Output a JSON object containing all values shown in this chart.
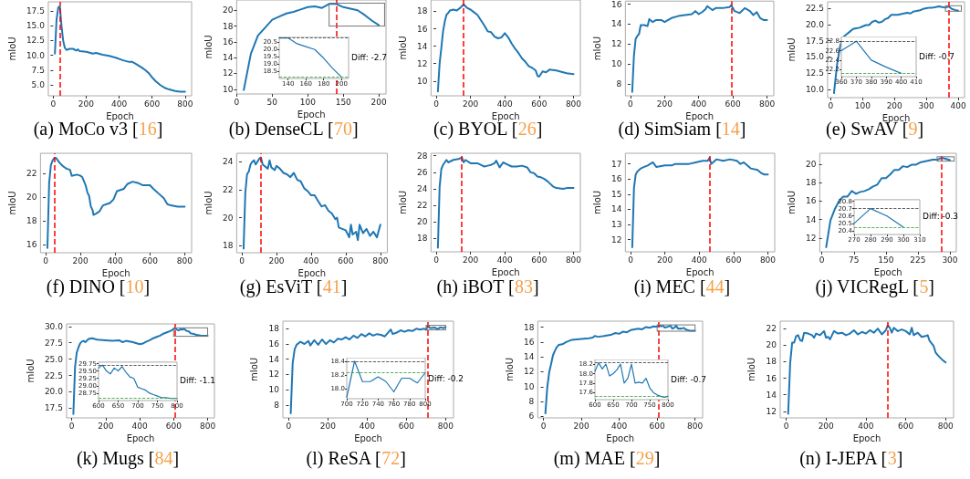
{
  "chart_data": [
    {
      "type": "line",
      "title": "(a) MoCo v3 [16]",
      "xlabel": "Epoch",
      "ylabel": "mIoU",
      "color": "#1f77b4",
      "x": [
        10,
        20,
        30,
        40,
        50,
        60,
        70,
        80,
        100,
        120,
        140,
        150,
        160,
        200,
        240,
        260,
        300,
        340,
        380,
        420,
        460,
        480,
        500,
        540,
        560,
        580,
        600,
        620,
        650,
        680,
        700,
        740,
        770,
        800
      ],
      "values": [
        10.3,
        16,
        18,
        18.3,
        15,
        12.5,
        11.3,
        10.9,
        11.1,
        11.1,
        10.8,
        11,
        10.7,
        10.6,
        10.3,
        10.4,
        10.1,
        9.9,
        9.6,
        9.2,
        8.9,
        8.9,
        8.6,
        7.9,
        7.5,
        7,
        6.3,
        5.7,
        5,
        4.5,
        4.3,
        4,
        3.9,
        3.9
      ],
      "xlim": [
        -30,
        840
      ],
      "ylim": [
        3.2,
        19
      ],
      "xticks": [
        0,
        200,
        400,
        600,
        800
      ],
      "yticks": [
        {
          "value": 5,
          "label": "5.0"
        },
        7.5,
        {
          "value": 10,
          "label": "10.0"
        },
        12.5,
        {
          "value": 15,
          "label": "15.0"
        },
        17.5
      ],
      "ref_lines": [
        {
          "axis": "x",
          "value": 40,
          "color": "#ff0000",
          "line_style": "dashed"
        }
      ]
    },
    {
      "type": "line",
      "title": "(b) DenseCL [70]",
      "xlabel": "Epoch",
      "ylabel": "mIoU",
      "color": "#1f77b4",
      "x": [
        10,
        20,
        30,
        40,
        50,
        60,
        70,
        80,
        90,
        100,
        110,
        120,
        130,
        140,
        150,
        160,
        170,
        180,
        190,
        200
      ],
      "values": [
        9.9,
        14.5,
        16.8,
        17.8,
        18.8,
        19.2,
        19.6,
        19.8,
        20.1,
        20.4,
        20.5,
        20.3,
        20.8,
        20.8,
        20.4,
        20.2,
        20,
        19.4,
        18.7,
        18.1
      ],
      "xlim": [
        0,
        210
      ],
      "ylim": [
        9.4,
        21.3
      ],
      "xticks": [
        0,
        50,
        100,
        150,
        200
      ],
      "yticks": [
        10,
        12,
        14,
        16,
        18,
        20
      ],
      "ref_lines": [
        {
          "axis": "x",
          "value": 140,
          "color": "#ff0000",
          "line_style": "dashed"
        }
      ]
    },
    {
      "type": "line",
      "title": "(c) BYOL [26]",
      "xlabel": "Epoch",
      "ylabel": "mIoU",
      "color": "#1f77b4",
      "x": [
        10,
        20,
        30,
        40,
        50,
        60,
        70,
        80,
        100,
        120,
        140,
        160,
        170,
        180,
        200,
        220,
        240,
        260,
        280,
        300,
        320,
        340,
        360,
        380,
        400,
        420,
        440,
        460,
        480,
        500,
        520,
        540,
        560,
        580,
        590,
        600,
        620,
        640,
        660,
        700,
        740,
        760,
        800
      ],
      "values": [
        8.8,
        12,
        13.8,
        15.7,
        16.8,
        17.6,
        17.8,
        18.1,
        18.2,
        18.1,
        18.4,
        18.8,
        18.6,
        18.4,
        18.2,
        17.9,
        17.6,
        17,
        16.4,
        15.7,
        15.6,
        15.1,
        14.9,
        15,
        15.5,
        15,
        14.3,
        13.7,
        13.2,
        12.6,
        12.2,
        11.7,
        11.5,
        11.2,
        10.6,
        10.5,
        11.1,
        11,
        11.3,
        11.2,
        11,
        10.9,
        10.8
      ],
      "xlim": [
        -30,
        840
      ],
      "ylim": [
        8.3,
        19.3
      ],
      "xticks": [
        0,
        200,
        400,
        600,
        800
      ],
      "yticks": [
        10,
        12,
        14,
        16,
        18
      ],
      "ref_lines": [
        {
          "axis": "x",
          "value": 160,
          "color": "#ff0000",
          "line_style": "dashed"
        }
      ]
    },
    {
      "type": "line",
      "title": "(d) SimSiam [14]",
      "xlabel": "Epoch",
      "ylabel": "mIoU",
      "color": "#1f77b4",
      "x": [
        10,
        20,
        30,
        40,
        50,
        60,
        80,
        100,
        110,
        130,
        150,
        180,
        200,
        240,
        280,
        320,
        360,
        380,
        400,
        420,
        440,
        450,
        480,
        500,
        540,
        580,
        590,
        610,
        640,
        670,
        700,
        720,
        740,
        760,
        780,
        800
      ],
      "values": [
        7.2,
        10.8,
        12.5,
        12.8,
        13,
        13.9,
        13.9,
        13.8,
        14.5,
        14.2,
        14.4,
        14.4,
        14.2,
        14.6,
        14.8,
        14.9,
        15,
        15.3,
        15,
        15.2,
        15.5,
        15.8,
        15.4,
        15.6,
        15.6,
        15.7,
        15.9,
        15.3,
        15.1,
        15.6,
        15.3,
        14.9,
        15.2,
        14.6,
        14.4,
        14.4
      ],
      "xlim": [
        -30,
        840
      ],
      "ylim": [
        6.8,
        16.3
      ],
      "xticks": [
        0,
        200,
        400,
        600,
        800
      ],
      "yticks": [
        8,
        10,
        12,
        14,
        16
      ],
      "ref_lines": [
        {
          "axis": "x",
          "value": 590,
          "color": "#ff0000",
          "line_style": "dashed"
        }
      ]
    },
    {
      "type": "line",
      "title": "(e) SwAV [9]",
      "xlabel": "Epoch",
      "ylabel": "mIoU",
      "color": "#1f77b4",
      "x": [
        10,
        20,
        30,
        40,
        50,
        60,
        70,
        80,
        90,
        100,
        110,
        120,
        130,
        140,
        150,
        160,
        170,
        180,
        190,
        200,
        210,
        220,
        230,
        240,
        250,
        260,
        270,
        280,
        290,
        300,
        310,
        320,
        330,
        340,
        350,
        360,
        370,
        380,
        390,
        400
      ],
      "values": [
        9.4,
        13.9,
        16.8,
        18.1,
        18.5,
        18.9,
        19.3,
        19.4,
        19.5,
        19.7,
        19.9,
        19.9,
        20.4,
        20.6,
        20.3,
        20.4,
        20.8,
        21,
        21.5,
        21.5,
        21.5,
        21.6,
        21.7,
        21.8,
        21.7,
        22,
        22.1,
        22.2,
        22.4,
        22.5,
        22.6,
        22.6,
        22.7,
        22.8,
        22.7,
        22.6,
        22.8,
        22.4,
        22.25,
        22.12
      ],
      "xlim": [
        -10,
        420
      ],
      "ylim": [
        8.7,
        23.5
      ],
      "xticks": [
        0,
        100,
        200,
        300,
        400
      ],
      "yticks": [
        {
          "value": 10,
          "label": "10.0"
        },
        12.5,
        {
          "value": 15,
          "label": "15.0"
        },
        17.5,
        {
          "value": 20,
          "label": "20.0"
        },
        22.5
      ],
      "ref_lines": [
        {
          "axis": "x",
          "value": 370,
          "color": "#ff0000",
          "line_style": "dashed"
        }
      ]
    },
    {
      "type": "line",
      "title": "(f) DINO [10]",
      "xlabel": "Epoch",
      "ylabel": "mIoU",
      "color": "#1f77b4",
      "x": [
        10,
        20,
        30,
        40,
        50,
        60,
        70,
        80,
        100,
        120,
        140,
        150,
        180,
        200,
        210,
        230,
        240,
        250,
        260,
        270,
        275,
        290,
        310,
        330,
        350,
        370,
        390,
        410,
        430,
        450,
        470,
        500,
        530,
        560,
        600,
        620,
        650,
        680,
        700,
        720,
        760,
        800
      ],
      "values": [
        15.7,
        21.2,
        22.7,
        23.1,
        23.3,
        23.3,
        23.1,
        22.9,
        22.6,
        22.4,
        22.3,
        21.8,
        21.9,
        21.8,
        21.7,
        21,
        20.4,
        20.1,
        19.2,
        18.9,
        18.5,
        18.6,
        18.8,
        19.3,
        19.4,
        19.5,
        19.8,
        20.5,
        20.6,
        20.7,
        21.1,
        21.3,
        21.2,
        21,
        21,
        20.7,
        20.3,
        19.9,
        19.4,
        19.3,
        19.2,
        19.2
      ],
      "xlim": [
        -30,
        840
      ],
      "ylim": [
        15.3,
        23.7
      ],
      "xticks": [
        0,
        200,
        400,
        600,
        800
      ],
      "yticks": [
        16,
        18,
        20,
        22
      ],
      "ref_lines": [
        {
          "axis": "x",
          "value": 50,
          "color": "#ff0000",
          "line_style": "dashed"
        }
      ]
    },
    {
      "type": "line",
      "title": "(g) EsViT [41]",
      "xlabel": "Epoch",
      "ylabel": "mIoU",
      "color": "#1f77b4",
      "x": [
        10,
        20,
        30,
        40,
        50,
        60,
        70,
        80,
        90,
        100,
        110,
        120,
        140,
        150,
        160,
        170,
        190,
        200,
        220,
        240,
        260,
        280,
        300,
        320,
        340,
        360,
        380,
        400,
        420,
        440,
        460,
        480,
        500,
        520,
        540,
        550,
        560,
        580,
        600,
        620,
        630,
        640,
        660,
        670,
        680,
        700,
        720,
        740,
        760,
        780,
        800
      ],
      "values": [
        17.8,
        21.8,
        23.1,
        23.3,
        23.8,
        24,
        24.1,
        23.8,
        24,
        24.2,
        24.3,
        23.8,
        23.6,
        23.5,
        24.1,
        23.6,
        23.4,
        23.7,
        23.5,
        23.2,
        23.1,
        22.9,
        23.2,
        22.7,
        22.6,
        22.1,
        21.9,
        21.6,
        21.6,
        21.2,
        20.8,
        20.9,
        20.5,
        20.3,
        19.9,
        20,
        19.3,
        19.2,
        19.1,
        18.6,
        19.5,
        18.8,
        19,
        18.4,
        19.5,
        18.9,
        19.2,
        18.7,
        19,
        18.6,
        19.5
      ],
      "xlim": [
        -30,
        840
      ],
      "ylim": [
        17.5,
        24.6
      ],
      "xticks": [
        0,
        200,
        400,
        600,
        800
      ],
      "yticks": [
        18,
        20,
        22,
        24
      ],
      "ref_lines": [
        {
          "axis": "x",
          "value": 110,
          "color": "#ff0000",
          "line_style": "dashed"
        }
      ]
    },
    {
      "type": "line",
      "title": "(h) iBOT [83]",
      "xlabel": "Epoch",
      "ylabel": "mIoU",
      "color": "#1f77b4",
      "x": [
        10,
        20,
        30,
        40,
        50,
        60,
        70,
        100,
        130,
        150,
        160,
        170,
        200,
        240,
        260,
        280,
        300,
        320,
        340,
        350,
        370,
        390,
        410,
        440,
        470,
        500,
        530,
        550,
        570,
        590,
        610,
        630,
        650,
        680,
        700,
        740,
        760,
        800
      ],
      "values": [
        16.9,
        24.2,
        26.4,
        26.9,
        27.2,
        27.5,
        27.2,
        27.5,
        27.6,
        27.8,
        27.2,
        27.5,
        27.1,
        27.1,
        26.9,
        26.7,
        26.8,
        26.9,
        27.1,
        27.4,
        26.6,
        27.2,
        27,
        26.7,
        26.7,
        26.8,
        26.6,
        26,
        25.9,
        25.5,
        25.4,
        25.2,
        24.9,
        24.3,
        24.1,
        24,
        24.1,
        24.1
      ],
      "xlim": [
        -30,
        840
      ],
      "ylim": [
        16.4,
        28.3
      ],
      "xticks": [
        0,
        200,
        400,
        600,
        800
      ],
      "yticks": [
        18,
        20,
        22,
        24,
        26,
        28
      ],
      "ref_lines": [
        {
          "axis": "x",
          "value": 150,
          "color": "#ff0000",
          "line_style": "dashed"
        }
      ]
    },
    {
      "type": "line",
      "title": "(i) MEC [44]",
      "xlabel": "Epoch",
      "ylabel": "mIoU",
      "color": "#1f77b4",
      "x": [
        10,
        20,
        30,
        40,
        60,
        80,
        100,
        130,
        150,
        200,
        240,
        260,
        300,
        340,
        380,
        420,
        450,
        460,
        470,
        500,
        540,
        580,
        620,
        640,
        660,
        700,
        740,
        760,
        780,
        800
      ],
      "values": [
        11.5,
        15.4,
        16.3,
        16.5,
        16.7,
        16.8,
        16.9,
        17.1,
        16.8,
        16.9,
        16.9,
        17,
        17,
        17,
        17.1,
        17.2,
        17.2,
        17.4,
        17,
        17.3,
        17.2,
        17.3,
        17.2,
        17,
        17.1,
        16.7,
        16.6,
        16.4,
        16.3,
        16.3
      ],
      "xlim": [
        -30,
        840
      ],
      "ylim": [
        11.2,
        17.7
      ],
      "xticks": [
        0,
        200,
        400,
        600,
        800
      ],
      "yticks": [
        12,
        13,
        14,
        15,
        16,
        17
      ],
      "ref_lines": [
        {
          "axis": "x",
          "value": 460,
          "color": "#ff0000",
          "line_style": "dashed"
        }
      ]
    },
    {
      "type": "line",
      "title": "(j) VICRegL [5]",
      "xlabel": "Epoch",
      "ylabel": "mIoU",
      "color": "#1f77b4",
      "x": [
        10,
        20,
        30,
        40,
        50,
        60,
        70,
        80,
        90,
        100,
        110,
        120,
        130,
        140,
        150,
        160,
        170,
        180,
        190,
        200,
        210,
        220,
        230,
        240,
        250,
        260,
        270,
        280,
        290,
        300
      ],
      "values": [
        11,
        13.9,
        15.1,
        16,
        16.5,
        16.5,
        17.1,
        16.8,
        17,
        17.1,
        17.3,
        17.6,
        17.8,
        18.5,
        18.5,
        18.9,
        19.4,
        19.4,
        19.8,
        19.7,
        19.95,
        19.95,
        20.2,
        20.3,
        20.4,
        20.5,
        20.5,
        20.7,
        20.6,
        20.45
      ],
      "xlim": [
        -5,
        315
      ],
      "ylim": [
        10.5,
        21.2
      ],
      "xticks": [
        0,
        75,
        150,
        225,
        300
      ],
      "yticks": [
        12,
        14,
        16,
        18,
        20
      ],
      "ref_lines": [
        {
          "axis": "x",
          "value": 280,
          "color": "#ff0000",
          "line_style": "dashed"
        }
      ]
    },
    {
      "type": "line",
      "title": "(k) Mugs [84]",
      "xlabel": "Epoch",
      "ylabel": "mIoU",
      "color": "#1f77b4",
      "x": [
        10,
        20,
        30,
        40,
        50,
        60,
        70,
        80,
        100,
        120,
        150,
        200,
        240,
        280,
        300,
        320,
        360,
        400,
        420,
        440,
        460,
        480,
        500,
        520,
        540,
        560,
        580,
        600,
        610,
        620,
        630,
        640,
        650,
        660,
        670,
        680,
        690,
        700,
        710,
        720,
        730,
        740,
        750,
        760,
        770,
        780,
        790,
        800
      ],
      "values": [
        16.6,
        23.8,
        26,
        26.8,
        27.4,
        27.7,
        27.8,
        27.6,
        28.1,
        28.2,
        28,
        27.9,
        27.8,
        27.9,
        27.6,
        27.8,
        27.6,
        27.3,
        27.4,
        27.7,
        27.9,
        28.2,
        28.4,
        28.6,
        28.9,
        29.1,
        29.3,
        29.6,
        29.7,
        29.5,
        29.4,
        29.6,
        29.5,
        29.65,
        29.45,
        29.3,
        29.25,
        28.95,
        28.9,
        28.85,
        28.75,
        28.7,
        28.65,
        28.6,
        28.6,
        28.58,
        28.57,
        28.57
      ],
      "xlim": [
        -30,
        840
      ],
      "ylim": [
        16,
        30.4
      ],
      "xticks": [
        0,
        200,
        400,
        600,
        800
      ],
      "yticks": [
        17.5,
        {
          "value": 20,
          "label": "20.0"
        },
        22.5,
        {
          "value": 25,
          "label": "25.0"
        },
        27.5,
        {
          "value": 30,
          "label": "30.0"
        }
      ],
      "ref_lines": [
        {
          "axis": "x",
          "value": 610,
          "color": "#ff0000",
          "line_style": "dashed"
        }
      ]
    },
    {
      "type": "line",
      "title": "(l) ReSA [72]",
      "xlabel": "Epoch",
      "ylabel": "mIoU",
      "color": "#1f77b4",
      "x": [
        10,
        20,
        30,
        40,
        60,
        80,
        100,
        110,
        130,
        150,
        170,
        190,
        210,
        230,
        250,
        270,
        290,
        310,
        330,
        350,
        370,
        390,
        410,
        430,
        450,
        470,
        490,
        510,
        520,
        530,
        550,
        570,
        590,
        610,
        630,
        650,
        670,
        690,
        700,
        710,
        720,
        730,
        740,
        750,
        760,
        770,
        780,
        790,
        800
      ],
      "values": [
        6.9,
        13.5,
        15.3,
        15.9,
        16.3,
        16,
        16.4,
        15.8,
        16.5,
        15.9,
        16.6,
        16,
        16.5,
        16.2,
        16.7,
        16.6,
        16.9,
        16.6,
        17.1,
        16.8,
        17.3,
        17,
        17.4,
        17.1,
        17.3,
        17.2,
        17,
        17.6,
        17.9,
        17.3,
        17.5,
        17.8,
        17.6,
        17.8,
        17.7,
        18,
        17.9,
        18,
        17.87,
        18.4,
        18.1,
        18.1,
        18.17,
        18.1,
        17.95,
        18.15,
        18.15,
        18.08,
        18.23
      ],
      "xlim": [
        -30,
        840
      ],
      "ylim": [
        6.3,
        19
      ],
      "xticks": [
        0,
        200,
        400,
        600,
        800
      ],
      "yticks": [
        8,
        10,
        12,
        14,
        16,
        18
      ],
      "ref_lines": [
        {
          "axis": "x",
          "value": 710,
          "color": "#ff0000",
          "line_style": "dashed"
        }
      ]
    },
    {
      "type": "line",
      "title": "(m) MAE [29]",
      "xlabel": "Epoch",
      "ylabel": "mIoU",
      "color": "#1f77b4",
      "x": [
        10,
        20,
        30,
        40,
        50,
        60,
        70,
        80,
        100,
        120,
        150,
        200,
        240,
        260,
        270,
        290,
        320,
        360,
        380,
        400,
        420,
        440,
        460,
        480,
        500,
        520,
        540,
        560,
        580,
        600,
        610,
        620,
        630,
        640,
        650,
        660,
        670,
        680,
        690,
        700,
        710,
        720,
        730,
        740,
        750,
        760,
        770,
        780,
        790,
        800
      ],
      "values": [
        6.4,
        9.9,
        11.9,
        13,
        14.2,
        14.8,
        15.3,
        15.6,
        15.7,
        16,
        16.3,
        16.4,
        16.5,
        16.6,
        16.8,
        16.7,
        16.8,
        17,
        17.2,
        17.1,
        17.4,
        17.3,
        17.6,
        17.7,
        17.8,
        17.7,
        18,
        17.9,
        18.1,
        18.05,
        18.23,
        18.1,
        18.2,
        17.95,
        18,
        18.08,
        18.2,
        17.8,
        17.9,
        18.2,
        17.8,
        17.82,
        17.8,
        17.9,
        17.7,
        17.6,
        17.55,
        17.52,
        17.5,
        17.52
      ],
      "xlim": [
        -30,
        840
      ],
      "ylim": [
        5.8,
        18.8
      ],
      "xticks": [
        0,
        200,
        400,
        600,
        800
      ],
      "yticks": [
        6,
        8,
        10,
        12,
        14,
        16,
        18
      ],
      "ref_lines": [
        {
          "axis": "x",
          "value": 610,
          "color": "#ff0000",
          "line_style": "dashed"
        }
      ]
    },
    {
      "type": "line",
      "title": "(n) I-JEPA [3]",
      "xlabel": "Epoch",
      "ylabel": "mIoU",
      "color": "#1f77b4",
      "x": [
        10,
        20,
        30,
        40,
        50,
        60,
        70,
        80,
        90,
        110,
        130,
        140,
        150,
        170,
        190,
        200,
        210,
        220,
        240,
        260,
        280,
        300,
        320,
        340,
        360,
        380,
        400,
        420,
        440,
        460,
        480,
        500,
        510,
        520,
        530,
        540,
        560,
        580,
        600,
        620,
        630,
        640,
        660,
        680,
        700,
        710,
        720,
        740,
        750,
        760,
        780,
        800
      ],
      "values": [
        11.7,
        17.8,
        20.3,
        20.3,
        21.1,
        21.2,
        20.6,
        20.5,
        21.5,
        21.4,
        21.2,
        20.9,
        21.4,
        21.2,
        21.7,
        20.9,
        21,
        20.7,
        21.7,
        21.4,
        21.5,
        21.2,
        21.4,
        21.8,
        21.3,
        21.6,
        21.4,
        21.8,
        21.5,
        22,
        21.3,
        21.8,
        22.4,
        22.1,
        21.5,
        22.1,
        21.7,
        21.9,
        21.7,
        21.3,
        22.1,
        21.2,
        21.5,
        21,
        21.1,
        21.2,
        20.5,
        19.9,
        19.1,
        18.8,
        18.3,
        17.9
      ],
      "xlim": [
        -30,
        840
      ],
      "ylim": [
        11.2,
        22.9
      ],
      "xticks": [
        0,
        200,
        400,
        600,
        800
      ],
      "yticks": [
        12,
        14,
        16,
        18,
        20,
        22
      ],
      "ref_lines": [
        {
          "axis": "x",
          "value": 510,
          "color": "#ff0000",
          "line_style": "dashed"
        }
      ]
    },
    {
      "type": "line",
      "color": "#1f77b4",
      "x": [
        130,
        140,
        150,
        160,
        170,
        180,
        190,
        200
      ],
      "values": [
        20.8,
        20.8,
        20.4,
        20.2,
        20,
        19.4,
        18.7,
        18.1
      ],
      "xlim": [
        130,
        208
      ],
      "ylim": [
        18,
        20.9
      ],
      "xticks": [
        140,
        160,
        180,
        200
      ],
      "yticks": [
        18.5,
        {
          "value": 19,
          "label": "19.0"
        },
        19.5,
        {
          "value": 20,
          "label": "20.0"
        },
        20.5
      ],
      "ref_lines": [
        {
          "axis": "y",
          "value": 20.8,
          "color": "#333333",
          "line_style": "dashed"
        },
        {
          "axis": "y",
          "value": 18.1,
          "color": "#2ca02c",
          "line_style": "dashed"
        }
      ],
      "annotations": [
        "Diff: -2.7"
      ]
    },
    {
      "type": "line",
      "color": "#1f77b4",
      "x": [
        360,
        370,
        380,
        390,
        400
      ],
      "values": [
        22.6,
        22.8,
        22.4,
        22.25,
        22.12
      ],
      "xlim": [
        360,
        410
      ],
      "ylim": [
        22.05,
        22.9
      ],
      "xticks": [
        360,
        370,
        380,
        390,
        400,
        410
      ],
      "yticks": [
        22.2,
        22.4,
        22.6,
        22.8
      ],
      "ref_lines": [
        {
          "axis": "y",
          "value": 22.8,
          "color": "#333333",
          "line_style": "dashed"
        },
        {
          "axis": "y",
          "value": 22.12,
          "color": "#2ca02c",
          "line_style": "dashed"
        }
      ],
      "annotations": [
        "Diff: -0.7"
      ]
    },
    {
      "type": "line",
      "color": "#1f77b4",
      "x": [
        270,
        280,
        290,
        300
      ],
      "values": [
        20.5,
        20.7,
        20.6,
        20.45
      ],
      "xlim": [
        270,
        310
      ],
      "ylim": [
        20.35,
        20.82
      ],
      "xticks": [
        270,
        280,
        290,
        300,
        310
      ],
      "yticks": [
        20.4,
        20.5,
        20.6,
        20.7,
        20.8
      ],
      "ref_lines": [
        {
          "axis": "y",
          "value": 20.7,
          "color": "#333333",
          "line_style": "dashed"
        },
        {
          "axis": "y",
          "value": 20.45,
          "color": "#2ca02c",
          "line_style": "dashed"
        }
      ],
      "annotations": [
        "Diff: -0.3"
      ]
    },
    {
      "type": "line",
      "color": "#1f77b4",
      "x": [
        600,
        610,
        620,
        630,
        640,
        650,
        660,
        670,
        680,
        690,
        700,
        710,
        720,
        730,
        740,
        750,
        760,
        770,
        780,
        790,
        800
      ],
      "values": [
        29.6,
        29.7,
        29.5,
        29.4,
        29.6,
        29.5,
        29.65,
        29.45,
        29.3,
        29.25,
        28.95,
        28.9,
        28.85,
        28.75,
        28.7,
        28.65,
        28.6,
        28.6,
        28.58,
        28.57,
        28.57
      ],
      "xlim": [
        600,
        800
      ],
      "ylim": [
        28.5,
        29.8
      ],
      "xticks": [
        600,
        650,
        700,
        750,
        800
      ],
      "yticks": [
        28.75,
        {
          "value": 29,
          "label": "29.00"
        },
        29.25,
        {
          "value": 29.5,
          "label": "29.50"
        },
        29.75
      ],
      "ref_lines": [
        {
          "axis": "y",
          "value": 29.7,
          "color": "#333333",
          "line_style": "dashed"
        },
        {
          "axis": "y",
          "value": 28.57,
          "color": "#2ca02c",
          "line_style": "dashed"
        }
      ],
      "annotations": [
        "Diff: -1.1"
      ]
    },
    {
      "type": "line",
      "color": "#1f77b4",
      "x": [
        700,
        710,
        720,
        730,
        740,
        750,
        760,
        770,
        780,
        790,
        800
      ],
      "values": [
        17.87,
        18.4,
        18.1,
        18.1,
        18.17,
        18.1,
        17.95,
        18.15,
        18.15,
        18.08,
        18.23
      ],
      "xlim": [
        700,
        800
      ],
      "ylim": [
        17.85,
        18.45
      ],
      "xticks": [
        700,
        720,
        740,
        760,
        780,
        800
      ],
      "yticks": [
        {
          "value": 18,
          "label": "18.0"
        },
        18.2,
        18.4
      ],
      "ref_lines": [
        {
          "axis": "y",
          "value": 18.4,
          "color": "#333333",
          "line_style": "dashed"
        },
        {
          "axis": "y",
          "value": 18.23,
          "color": "#2ca02c",
          "line_style": "dashed"
        }
      ],
      "annotations": [
        "Diff: -0.2"
      ]
    },
    {
      "type": "line",
      "color": "#1f77b4",
      "x": [
        600,
        610,
        620,
        630,
        640,
        650,
        660,
        670,
        680,
        690,
        700,
        710,
        720,
        730,
        740,
        750,
        760,
        770,
        780,
        790,
        800
      ],
      "values": [
        18.05,
        18.23,
        18.1,
        18.2,
        17.95,
        18,
        18.08,
        18.2,
        17.8,
        17.9,
        18.2,
        17.8,
        17.82,
        17.8,
        17.9,
        17.7,
        17.6,
        17.55,
        17.52,
        17.5,
        17.52
      ],
      "xlim": [
        600,
        800
      ],
      "ylim": [
        17.45,
        18.3
      ],
      "xticks": [
        600,
        650,
        700,
        750,
        800
      ],
      "yticks": [
        17.6,
        17.8,
        {
          "value": 18,
          "label": "18.0"
        },
        18.2
      ],
      "ref_lines": [
        {
          "axis": "y",
          "value": 18.23,
          "color": "#333333",
          "line_style": "dashed"
        },
        {
          "axis": "y",
          "value": 17.52,
          "color": "#2ca02c",
          "line_style": "dashed"
        }
      ],
      "annotations": [
        "Diff: -0.7"
      ]
    }
  ]
}
